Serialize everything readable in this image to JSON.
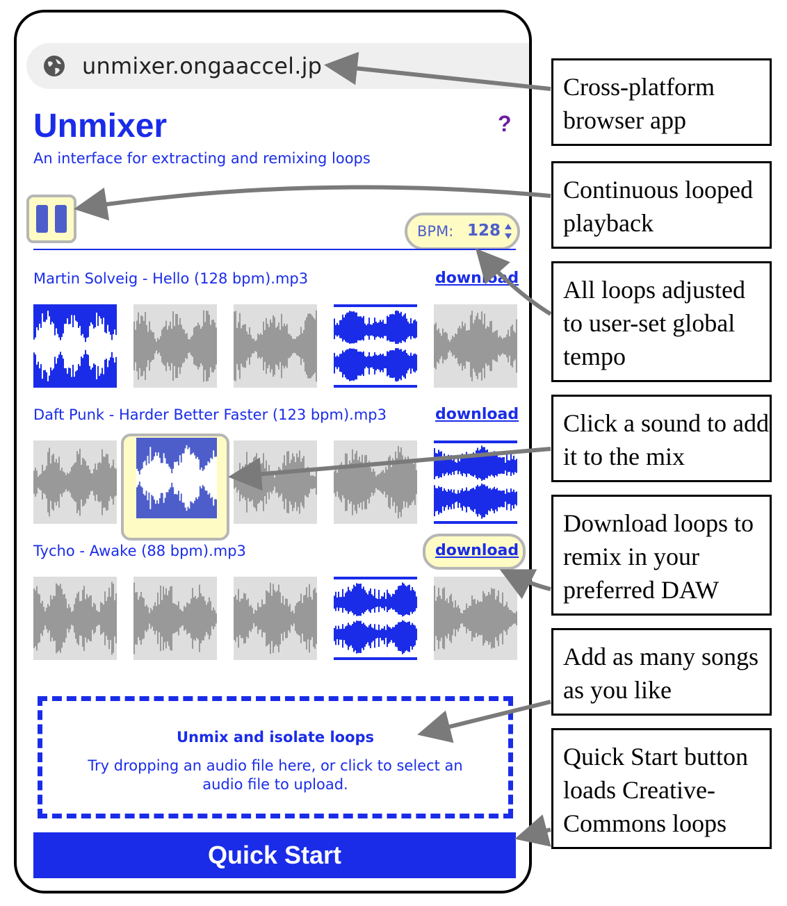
{
  "browser": {
    "url": "unmixer.ongaaccel.jp",
    "globe_icon": "globe-icon"
  },
  "app": {
    "title": "Unmixer",
    "help_label": "?",
    "subtitle": "An interface for extracting and remixing loops"
  },
  "player": {
    "state": "playing",
    "pause_icon": "pause-icon",
    "bpm_label": "BPM:",
    "bpm_value": "128"
  },
  "songs": [
    {
      "title": "Martin Solveig - Hello (128 bpm).mp3",
      "download_label": "download",
      "tiles": [
        "selected",
        "off",
        "off",
        "selected",
        "off"
      ]
    },
    {
      "title": "Daft Punk - Harder Better Faster (123 bpm).mp3",
      "download_label": "download",
      "tiles": [
        "off",
        "hover",
        "off",
        "off",
        "selected"
      ]
    },
    {
      "title": "Tycho - Awake (88 bpm).mp3",
      "download_label": "download",
      "tiles": [
        "off",
        "off",
        "off",
        "selected",
        "off"
      ]
    }
  ],
  "dropzone": {
    "heading": "Unmix and isolate loops",
    "body": "Try dropping an audio file here, or click to select an audio file to upload."
  },
  "quick_start_label": "Quick Start",
  "callouts": [
    "Cross-platform browser app",
    "Continuous looped playback",
    "All loops adjusted to user-set global tempo",
    "Click a sound to add it to the mix",
    "Download loops to remix in your preferred DAW",
    "Add as many songs as you like",
    "Quick Start button loads Creative-Commons loops"
  ],
  "colors": {
    "accent": "#1a2ce8",
    "highlight": "#fefbc4",
    "tile_off": "#dedede",
    "wave_off": "#999999"
  }
}
